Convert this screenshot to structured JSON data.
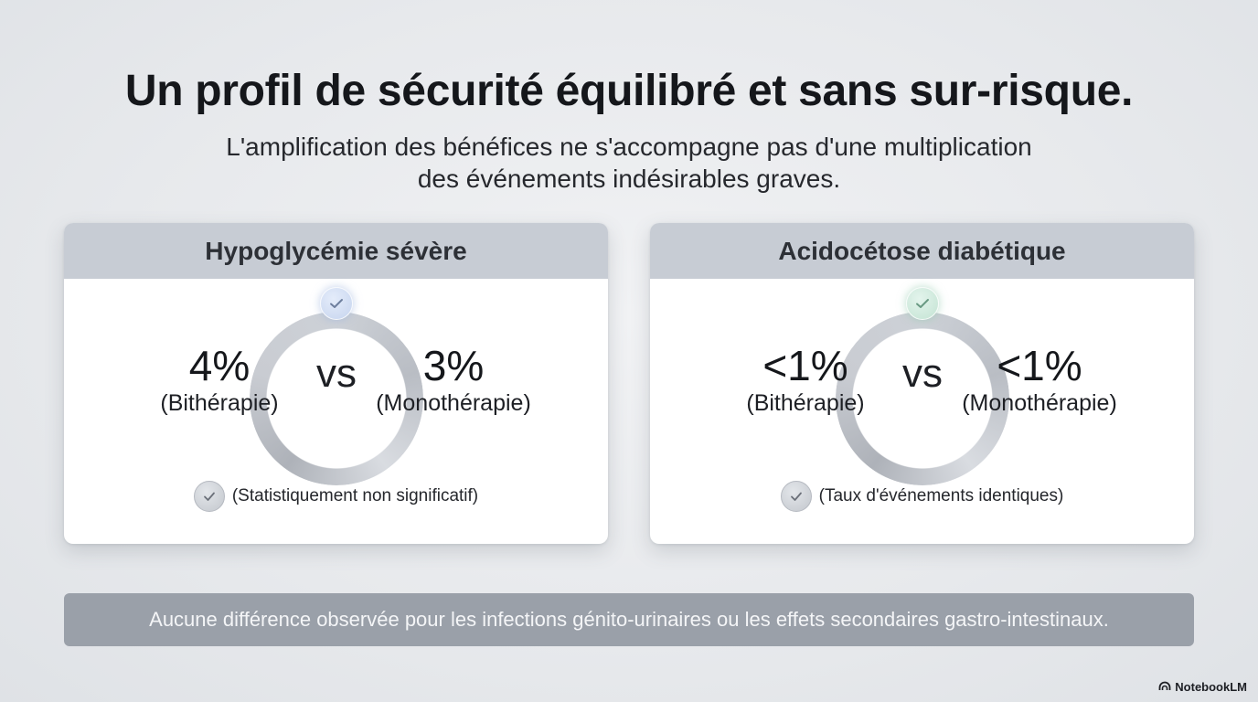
{
  "title": "Un profil de sécurité équilibré et sans sur-risque.",
  "subtitle_line1": "L'amplification des bénéfices ne s'accompagne pas d'une multiplication",
  "subtitle_line2": "des événements indésirables graves.",
  "cards": [
    {
      "header": "Hypoglycémie sévère",
      "left_value": "4%",
      "left_label": "(Bithérapie)",
      "vs": "vs",
      "right_value": "3%",
      "right_label": "(Monothérapie)",
      "note": "(Statistiquement non significatif)",
      "badge_color": "#c6d4ee"
    },
    {
      "header": "Acidocétose diabétique",
      "left_value": "<1%",
      "left_label": "(Bithérapie)",
      "vs": "vs",
      "right_value": "<1%",
      "right_label": "(Monothérapie)",
      "note": "(Taux d'événements identiques)",
      "badge_color": "#c3e3d3"
    }
  ],
  "banner": "Aucune différence observée pour les infections génito-urinaires ou les effets secondaires gastro-intestinaux.",
  "brand": "NotebookLM"
}
